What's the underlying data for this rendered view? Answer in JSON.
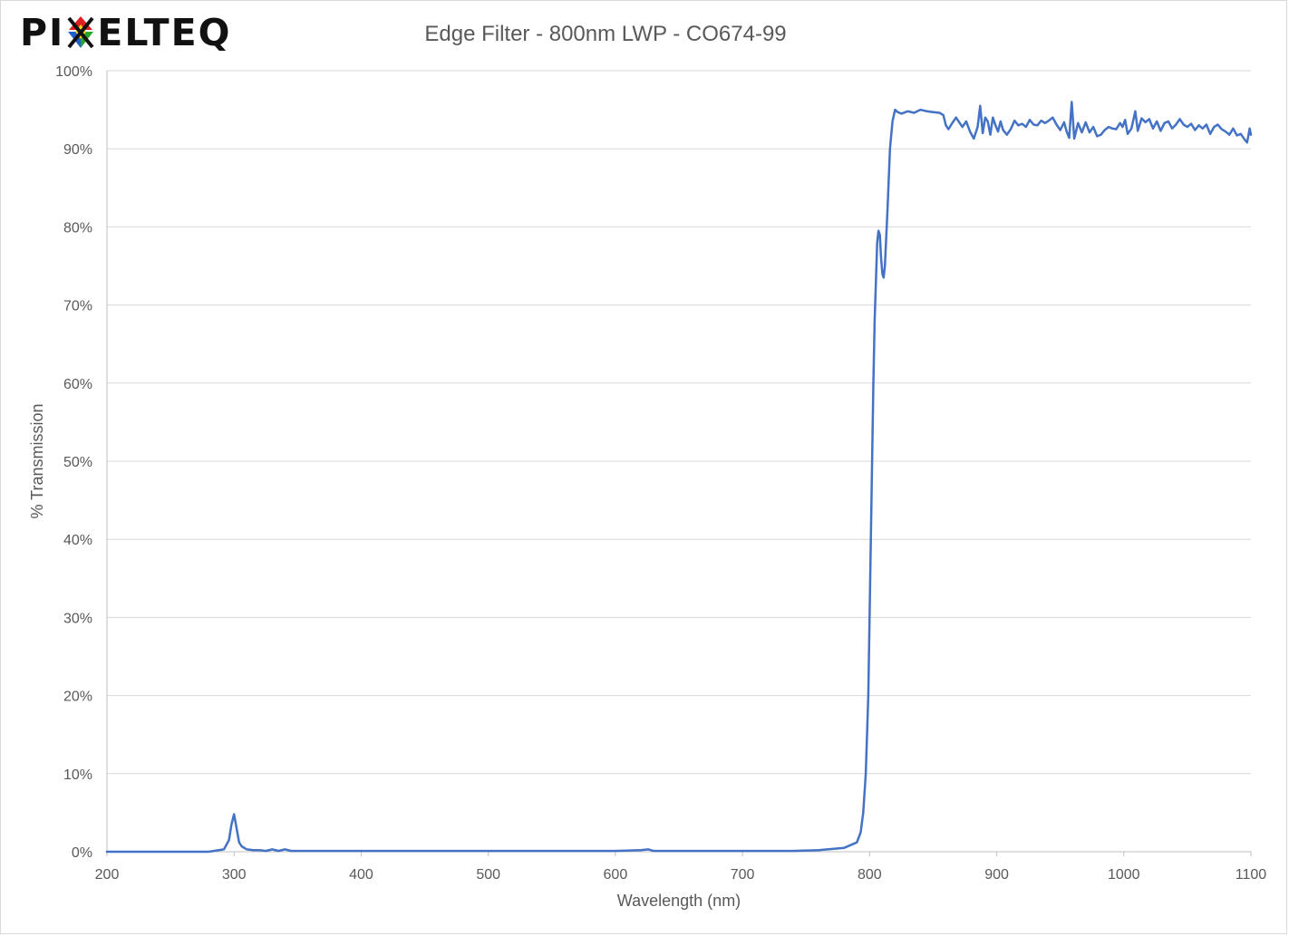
{
  "brand": {
    "name": "PIXELTEQ",
    "name_left": "PI",
    "name_right": "ELTEQ",
    "mark_colors": [
      "#e02020",
      "#2aa52a",
      "#1f5fd0",
      "#f2d21a"
    ]
  },
  "chart_data": {
    "type": "line",
    "title": "Edge Filter - 800nm LWP - CO674-99",
    "xlabel": "Wavelength (nm)",
    "ylabel": "% Transmission",
    "xlim": [
      200,
      1100
    ],
    "ylim": [
      0,
      100
    ],
    "xticks": [
      200,
      300,
      400,
      500,
      600,
      700,
      800,
      900,
      1000,
      1100
    ],
    "yticks": [
      0,
      10,
      20,
      30,
      40,
      50,
      60,
      70,
      80,
      90,
      100
    ],
    "ytick_labels": [
      "0%",
      "10%",
      "20%",
      "30%",
      "40%",
      "50%",
      "60%",
      "70%",
      "80%",
      "90%",
      "100%"
    ],
    "grid": "horizontal",
    "legend": "none",
    "series_color": "#4472c4",
    "series": [
      {
        "x": [
          200,
          280,
          292,
          296,
          298,
          300,
          302,
          304,
          306,
          310,
          315,
          320,
          325,
          330,
          335,
          340,
          345,
          350,
          390,
          445,
          500,
          550,
          600,
          620,
          626,
          630,
          640,
          700,
          740,
          760,
          780,
          790,
          793,
          795,
          797,
          799,
          800,
          801,
          802,
          803,
          804,
          805,
          806,
          807,
          808,
          809,
          810,
          811,
          812,
          814,
          816,
          818,
          820,
          822,
          825,
          830,
          835,
          840,
          845,
          850,
          855,
          858,
          860,
          862,
          865,
          868,
          870,
          873,
          876,
          879,
          882,
          885,
          887,
          889,
          891,
          893,
          895,
          897,
          899,
          901,
          903,
          905,
          908,
          911,
          914,
          917,
          920,
          923,
          926,
          929,
          932,
          935,
          938,
          941,
          944,
          947,
          950,
          953,
          955,
          957,
          959,
          961,
          964,
          967,
          970,
          973,
          976,
          979,
          982,
          985,
          988,
          991,
          994,
          997,
          999,
          1001,
          1003,
          1006,
          1009,
          1011,
          1014,
          1017,
          1020,
          1023,
          1026,
          1029,
          1032,
          1035,
          1038,
          1041,
          1044,
          1047,
          1050,
          1053,
          1056,
          1059,
          1062,
          1065,
          1068,
          1071,
          1074,
          1077,
          1080,
          1083,
          1086,
          1089,
          1092,
          1095,
          1097,
          1099,
          1100
        ],
        "y": [
          0,
          0,
          0.3,
          1.5,
          3.5,
          4.8,
          3,
          1.2,
          0.7,
          0.3,
          0.2,
          0.2,
          0.1,
          0.3,
          0.1,
          0.3,
          0.1,
          0.1,
          0.1,
          0.1,
          0.1,
          0.1,
          0.1,
          0.2,
          0.3,
          0.1,
          0.1,
          0.1,
          0.1,
          0.2,
          0.5,
          1.2,
          2.5,
          5,
          10,
          20,
          30,
          40,
          50,
          60,
          68,
          73,
          78,
          79.5,
          79,
          76,
          74,
          73.5,
          75,
          82,
          90,
          93.5,
          95,
          94.7,
          94.5,
          94.8,
          94.6,
          95,
          94.8,
          94.7,
          94.6,
          94.3,
          93,
          92.5,
          93.3,
          94,
          93.5,
          92.8,
          93.5,
          92.2,
          91.3,
          92.8,
          95.5,
          92,
          94,
          93.5,
          91.8,
          94,
          93,
          92.2,
          93.5,
          92.4,
          91.8,
          92.5,
          93.6,
          93,
          93.2,
          92.8,
          93.7,
          93.1,
          93,
          93.6,
          93.3,
          93.6,
          94,
          93.1,
          92.4,
          93.4,
          92.2,
          91.4,
          96,
          91.3,
          93.3,
          92.1,
          93.4,
          92.1,
          92.8,
          91.6,
          91.8,
          92.4,
          92.8,
          92.6,
          92.5,
          93.3,
          92.8,
          93.7,
          91.9,
          92.6,
          94.8,
          92.3,
          93.9,
          93.4,
          93.8,
          92.6,
          93.5,
          92.3,
          93.3,
          93.5,
          92.6,
          93.1,
          93.8,
          93.1,
          92.8,
          93.2,
          92.4,
          93,
          92.6,
          93.1,
          91.9,
          92.8,
          93.1,
          92.5,
          92.2,
          91.8,
          92.6,
          91.7,
          91.9,
          91.2,
          90.8,
          92.6,
          91.8
        ]
      }
    ]
  }
}
